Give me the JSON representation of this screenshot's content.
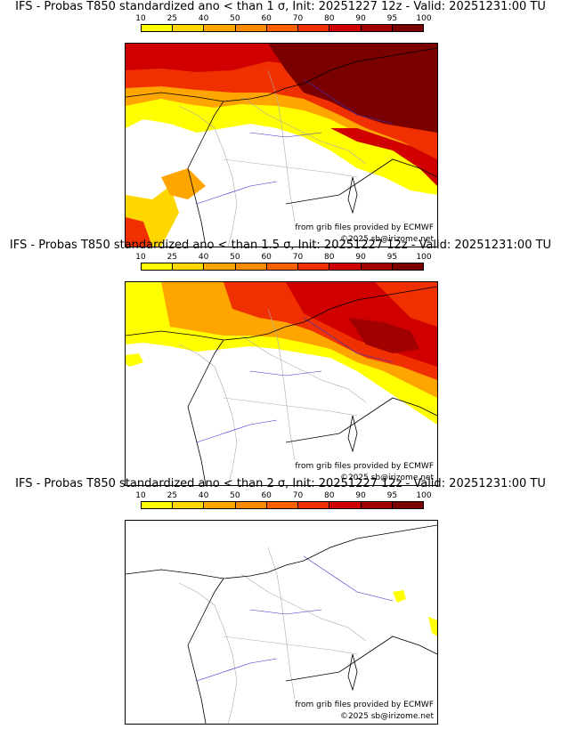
{
  "legend": {
    "ticks": [
      "10",
      "25",
      "40",
      "50",
      "60",
      "70",
      "80",
      "90",
      "95",
      "100"
    ],
    "colors": [
      "#ffff00",
      "#ffd700",
      "#ffa500",
      "#ff8c00",
      "#ff6000",
      "#f03000",
      "#d00000",
      "#a00000",
      "#7a0000"
    ]
  },
  "panels": [
    {
      "title": "IFS - Probas T850  standardized ano < than 1 σ, Init: 20251227 12z - Valid: 20251231:00 TU",
      "source_text": "from grib files provided by ECMWF",
      "copyright": "©2025 sb@irizome.net",
      "intensity": "high"
    },
    {
      "title": "IFS - Probas T850  standardized ano < than 1.5 σ, Init: 20251227 12z - Valid: 20251231:00 TU",
      "source_text": "from grib files provided by ECMWF",
      "copyright": "©2025 sb@irizome.net",
      "intensity": "medium"
    },
    {
      "title": "IFS - Probas T850  standardized ano < than 2 σ, Init: 20251227 12z - Valid: 20251231:00 TU",
      "source_text": "from grib files provided by ECMWF",
      "copyright": "©2025 sb@irizome.net",
      "intensity": "low"
    }
  ],
  "colors": {
    "coastline": "#000000",
    "border": "#333333",
    "rivers": "#3333cc",
    "regions": "#aaaaaa"
  }
}
